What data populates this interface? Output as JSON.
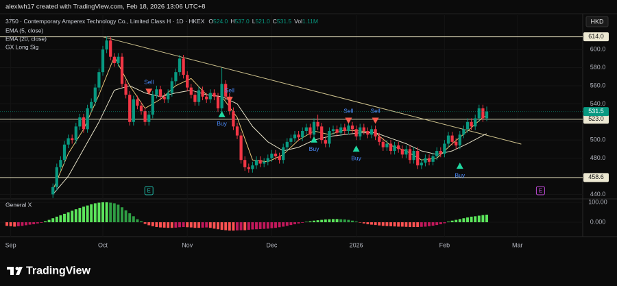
{
  "chart_data": {
    "type": "candlestick",
    "header": "alexlwh17 created with TradingView.com, Feb 18, 2026 13:06 UTC+8",
    "symbol": "3750 · Contemporary Amperex Technology Co., Limited Class H · 1D · HKEX",
    "ohlc_legend": [
      {
        "key": "O",
        "text": "524.0"
      },
      {
        "key": "H",
        "text": "537.0"
      },
      {
        "key": "L",
        "text": "521.0"
      },
      {
        "key": "C",
        "text": "531.5"
      },
      {
        "key": "Vol",
        "text": "1.11M"
      }
    ],
    "currency": "HKD",
    "xlim": [
      0,
      150
    ],
    "xticks": [
      {
        "value": 1,
        "label": "Sep"
      },
      {
        "value": 25,
        "label": "Oct"
      },
      {
        "value": 47,
        "label": "Nov"
      },
      {
        "value": 69,
        "label": "Dec"
      },
      {
        "value": 91,
        "label": "2026"
      },
      {
        "value": 114,
        "label": "Feb"
      },
      {
        "value": 133,
        "label": "Mar"
      }
    ],
    "ylim": [
      435,
      638
    ],
    "yticks": [
      {
        "value": 440,
        "label": "440.0"
      },
      {
        "value": 460,
        "label": "460.0"
      },
      {
        "value": 480,
        "label": "480.0"
      },
      {
        "value": 500,
        "label": "500.0"
      },
      {
        "value": 520,
        "label": "520.0"
      },
      {
        "value": 540,
        "label": "540.0"
      },
      {
        "value": 560,
        "label": "560.0"
      },
      {
        "value": 580,
        "label": "580.0"
      },
      {
        "value": 600,
        "label": "600.0"
      }
    ],
    "up_color": "#089981",
    "down_color": "#f23645",
    "open": [
      null,
      null,
      null,
      null,
      null,
      null,
      null,
      null,
      null,
      null,
      null,
      null,
      440,
      448,
      470,
      478,
      495,
      502,
      500,
      515,
      525,
      512,
      535,
      542,
      558,
      575,
      600,
      610,
      592,
      585,
      592,
      562,
      550,
      520,
      545,
      538,
      532,
      520,
      528,
      550,
      556,
      548,
      545,
      552,
      565,
      575,
      590,
      572,
      558,
      550,
      542,
      555,
      548,
      545,
      552,
      548,
      535,
      562,
      548,
      532,
      515,
      505,
      478,
      470,
      468,
      472,
      478,
      474,
      476,
      480,
      485,
      482,
      478,
      492,
      498,
      502,
      506,
      503,
      510,
      514,
      506,
      520,
      515,
      500,
      496,
      510,
      512,
      508,
      514,
      510,
      516,
      512,
      504,
      514,
      510,
      506,
      512,
      504,
      498,
      492,
      496,
      488,
      494,
      490,
      484,
      490,
      478,
      488,
      472,
      475,
      480,
      476,
      482,
      488,
      485,
      496,
      505,
      498,
      494,
      506,
      512,
      520,
      515,
      524,
      535,
      524
    ],
    "high": [
      null,
      null,
      null,
      null,
      null,
      null,
      null,
      null,
      null,
      null,
      null,
      null,
      452,
      474,
      482,
      499,
      506,
      506,
      519,
      529,
      529,
      539,
      546,
      562,
      579,
      604,
      614,
      614,
      596,
      596,
      596,
      566,
      554,
      549,
      549,
      542,
      536,
      532,
      554,
      560,
      560,
      552,
      556,
      569,
      579,
      594,
      594,
      576,
      562,
      554,
      559,
      559,
      552,
      556,
      556,
      552,
      580,
      566,
      552,
      536,
      519,
      509,
      482,
      474,
      476,
      482,
      482,
      480,
      484,
      489,
      489,
      486,
      496,
      502,
      506,
      510,
      510,
      514,
      518,
      518,
      524,
      528,
      519,
      504,
      514,
      516,
      516,
      518,
      518,
      520,
      520,
      516,
      518,
      518,
      514,
      516,
      516,
      508,
      502,
      500,
      500,
      498,
      498,
      494,
      494,
      494,
      492,
      492,
      479,
      484,
      484,
      486,
      492,
      492,
      500,
      509,
      509,
      502,
      510,
      516,
      524,
      524,
      528,
      539,
      539,
      537
    ],
    "low": [
      null,
      null,
      null,
      null,
      null,
      null,
      null,
      null,
      null,
      null,
      null,
      null,
      436,
      444,
      466,
      474,
      491,
      496,
      496,
      511,
      508,
      508,
      531,
      538,
      554,
      571,
      596,
      588,
      581,
      581,
      558,
      546,
      516,
      516,
      534,
      528,
      516,
      516,
      524,
      546,
      544,
      541,
      541,
      548,
      561,
      571,
      568,
      554,
      546,
      538,
      538,
      544,
      541,
      541,
      544,
      531,
      531,
      544,
      528,
      511,
      501,
      474,
      466,
      464,
      464,
      468,
      470,
      470,
      472,
      476,
      478,
      474,
      474,
      488,
      494,
      498,
      499,
      499,
      506,
      502,
      502,
      511,
      496,
      492,
      492,
      506,
      504,
      504,
      506,
      506,
      508,
      500,
      500,
      506,
      502,
      502,
      500,
      494,
      488,
      488,
      484,
      484,
      486,
      480,
      480,
      474,
      474,
      468,
      468,
      471,
      472,
      472,
      478,
      481,
      481,
      492,
      494,
      490,
      490,
      502,
      508,
      511,
      511,
      520,
      520,
      521
    ],
    "close": [
      null,
      null,
      null,
      null,
      null,
      null,
      null,
      null,
      null,
      null,
      null,
      null,
      448,
      470,
      478,
      495,
      502,
      500,
      515,
      525,
      512,
      535,
      542,
      558,
      575,
      600,
      610,
      592,
      585,
      592,
      562,
      550,
      520,
      545,
      538,
      532,
      520,
      528,
      550,
      556,
      548,
      545,
      552,
      565,
      575,
      590,
      572,
      558,
      550,
      542,
      555,
      548,
      545,
      552,
      548,
      535,
      562,
      548,
      532,
      515,
      505,
      478,
      470,
      468,
      472,
      478,
      474,
      476,
      480,
      485,
      482,
      478,
      492,
      498,
      502,
      506,
      503,
      510,
      514,
      506,
      520,
      515,
      500,
      496,
      510,
      512,
      508,
      514,
      510,
      516,
      512,
      504,
      514,
      510,
      506,
      512,
      504,
      498,
      492,
      496,
      488,
      494,
      490,
      484,
      490,
      478,
      488,
      472,
      475,
      480,
      476,
      482,
      488,
      485,
      496,
      505,
      498,
      494,
      506,
      512,
      520,
      515,
      524,
      535,
      524,
      531.5
    ],
    "overlays": [
      {
        "name": "EMA (5, close)",
        "color": "#e8c77a",
        "x": [
          12,
          16,
          20,
          24,
          28,
          32,
          36,
          40,
          44,
          48,
          52,
          56,
          60,
          64,
          68,
          72,
          76,
          80,
          84,
          88,
          92,
          96,
          100,
          104,
          108,
          112,
          116,
          120,
          124,
          125
        ],
        "values": [
          445,
          485,
          512,
          550,
          592,
          560,
          535,
          545,
          560,
          568,
          550,
          548,
          525,
          478,
          476,
          484,
          500,
          510,
          506,
          511,
          510,
          508,
          494,
          488,
          478,
          480,
          496,
          510,
          525,
          527
        ]
      },
      {
        "name": "EMA (20, close)",
        "color": "#e6e1c8",
        "x": [
          12,
          16,
          20,
          24,
          28,
          32,
          36,
          40,
          44,
          48,
          52,
          56,
          60,
          64,
          68,
          72,
          76,
          80,
          84,
          88,
          92,
          96,
          100,
          104,
          108,
          112,
          116,
          120,
          124,
          125
        ],
        "values": [
          440,
          460,
          490,
          520,
          555,
          560,
          552,
          548,
          552,
          555,
          550,
          548,
          540,
          515,
          498,
          488,
          492,
          500,
          504,
          506,
          508,
          508,
          502,
          496,
          488,
          484,
          488,
          496,
          505,
          507
        ]
      }
    ],
    "hlines": [
      {
        "value": 614,
        "label": "614.0"
      },
      {
        "value": 523,
        "label": "523.0"
      },
      {
        "value": 458.6,
        "label": "458.6"
      }
    ],
    "hline_color": "#d8d3b4",
    "trendline": {
      "x": [
        25,
        134
      ],
      "y": [
        614,
        495.5
      ],
      "color": "#cfc38e"
    },
    "signals": {
      "name": "GX Long Sig",
      "buy_color": "#1fd8a0",
      "sell_color": "#ff5a4d",
      "text_color": "#4c8dff",
      "items": [
        {
          "text": "Sell",
          "x": 37,
          "y": 553
        },
        {
          "text": "Buy",
          "x": 56,
          "y": 529
        },
        {
          "text": "Sell",
          "x": 58,
          "y": 544
        },
        {
          "text": "Buy",
          "x": 80,
          "y": 501
        },
        {
          "text": "Sell",
          "x": 89,
          "y": 521
        },
        {
          "text": "Buy",
          "x": 91,
          "y": 491
        },
        {
          "text": "Sell",
          "x": 96,
          "y": 521
        },
        {
          "text": "Buy",
          "x": 118,
          "y": 472
        }
      ]
    },
    "indicator": {
      "name": "General X",
      "type": "histogram",
      "ylim": [
        -72,
        117
      ],
      "yticks": [
        {
          "value": 100,
          "label": "100.00"
        },
        {
          "value": 0,
          "label": "0.000"
        }
      ],
      "colors": {
        "pos_rise": "#5ce65c",
        "pos_fall": "#2f9e44",
        "neg_fall": "#ff5252",
        "neg_rise": "#c2185b"
      },
      "values": [
        -18,
        -20,
        -22,
        -20,
        -18,
        -15,
        -12,
        -10,
        -6,
        -3,
        5,
        12,
        20,
        28,
        35,
        42,
        50,
        58,
        65,
        72,
        78,
        84,
        90,
        95,
        98,
        100,
        100,
        98,
        95,
        88,
        75,
        60,
        45,
        30,
        15,
        5,
        -8,
        -15,
        -20,
        -24,
        -26,
        -27,
        -28,
        -28,
        -27,
        -25,
        -24,
        -25,
        -26,
        -28,
        -28,
        -27,
        -26,
        -28,
        -32,
        -35,
        -38,
        -40,
        -42,
        -42,
        -41,
        -40,
        -40,
        -38,
        -36,
        -35,
        -34,
        -33,
        -32,
        -30,
        -28,
        -25,
        -22,
        -18,
        -14,
        -10,
        -6,
        -3,
        2,
        5,
        8,
        10,
        12,
        14,
        15,
        16,
        16,
        15,
        14,
        12,
        8,
        4,
        -2,
        -6,
        -10,
        -12,
        -14,
        -16,
        -18,
        -19,
        -20,
        -21,
        -22,
        -22,
        -23,
        -24,
        -24,
        -24,
        -23,
        -22,
        -20,
        -17,
        -14,
        -10,
        -5,
        3,
        8,
        12,
        16,
        20,
        24,
        28,
        30,
        33,
        36,
        38
      ]
    },
    "earnings": [
      {
        "text": "E",
        "x": 37,
        "color": "#1fb5a4"
      },
      {
        "text": "E",
        "x": 139,
        "color": "#c04ad8"
      }
    ],
    "footer": "TradingView"
  }
}
